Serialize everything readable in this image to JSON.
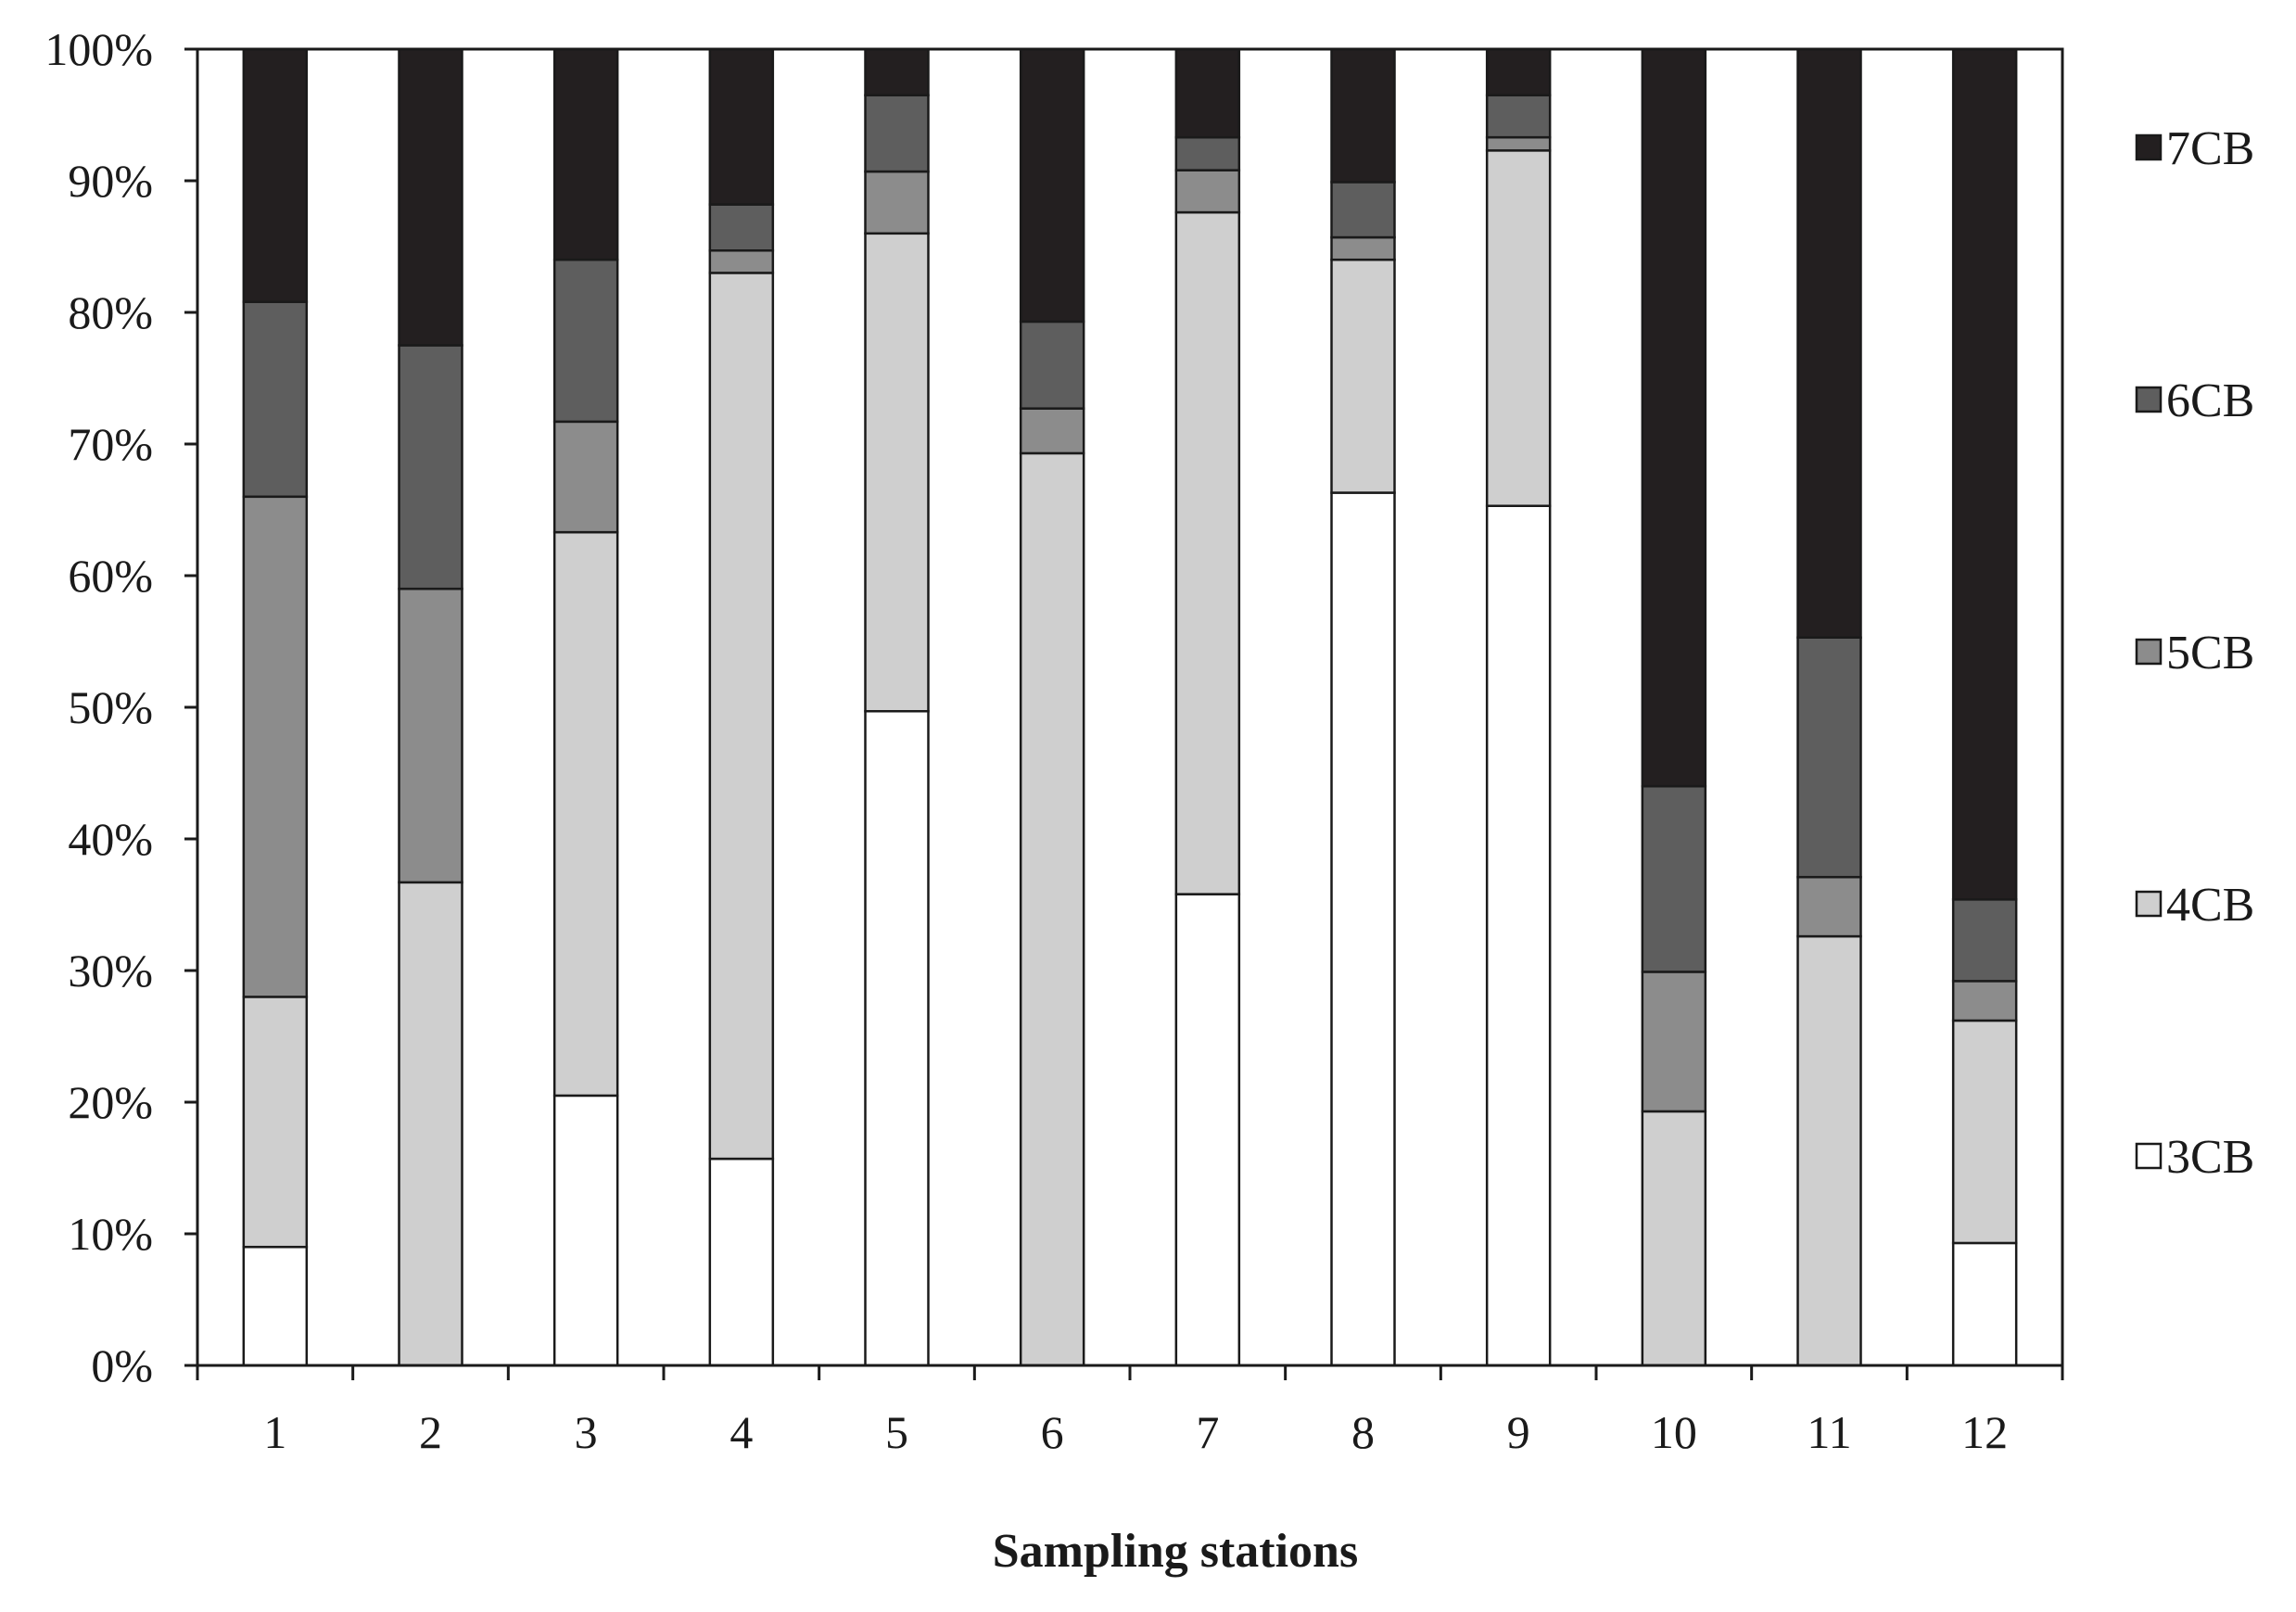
{
  "chart_data": {
    "type": "bar",
    "stacked": true,
    "normalized": true,
    "title": "",
    "xlabel": "Sampling stations",
    "ylabel": "",
    "categories": [
      "1",
      "2",
      "3",
      "4",
      "5",
      "6",
      "7",
      "8",
      "9",
      "10",
      "11",
      "12"
    ],
    "ylim": [
      0,
      100
    ],
    "y_ticks": [
      "0%",
      "10%",
      "20%",
      "30%",
      "40%",
      "50%",
      "60%",
      "70%",
      "80%",
      "90%",
      "100%"
    ],
    "grid": false,
    "legend_position": "right",
    "series": [
      {
        "name": "3CB",
        "color": "#ffffff",
        "values": [
          9,
          0,
          20.5,
          15.7,
          49.7,
          0,
          35.8,
          66.3,
          65.3,
          0,
          0,
          9.3
        ]
      },
      {
        "name": "4CB",
        "color": "#cfcfcf",
        "values": [
          19,
          36.7,
          42.8,
          67.3,
          36.3,
          69.3,
          51.8,
          17.7,
          27,
          19.3,
          32.6,
          16.9
        ]
      },
      {
        "name": "5CB",
        "color": "#8c8c8c",
        "values": [
          38,
          22.3,
          8.4,
          1.7,
          4.7,
          3.4,
          3.2,
          1.7,
          1,
          10.6,
          4.5,
          3
        ]
      },
      {
        "name": "6CB",
        "color": "#5e5e5e",
        "values": [
          14.8,
          18.5,
          12.3,
          3.5,
          5.8,
          6.6,
          2.5,
          4.2,
          3.2,
          14.1,
          18.2,
          6.2
        ]
      },
      {
        "name": "7CB",
        "color": "#231f20",
        "values": [
          19.2,
          22.5,
          16,
          11.8,
          3.5,
          20.7,
          6.7,
          10.1,
          3.5,
          56,
          44.7,
          64.6
        ]
      }
    ]
  }
}
